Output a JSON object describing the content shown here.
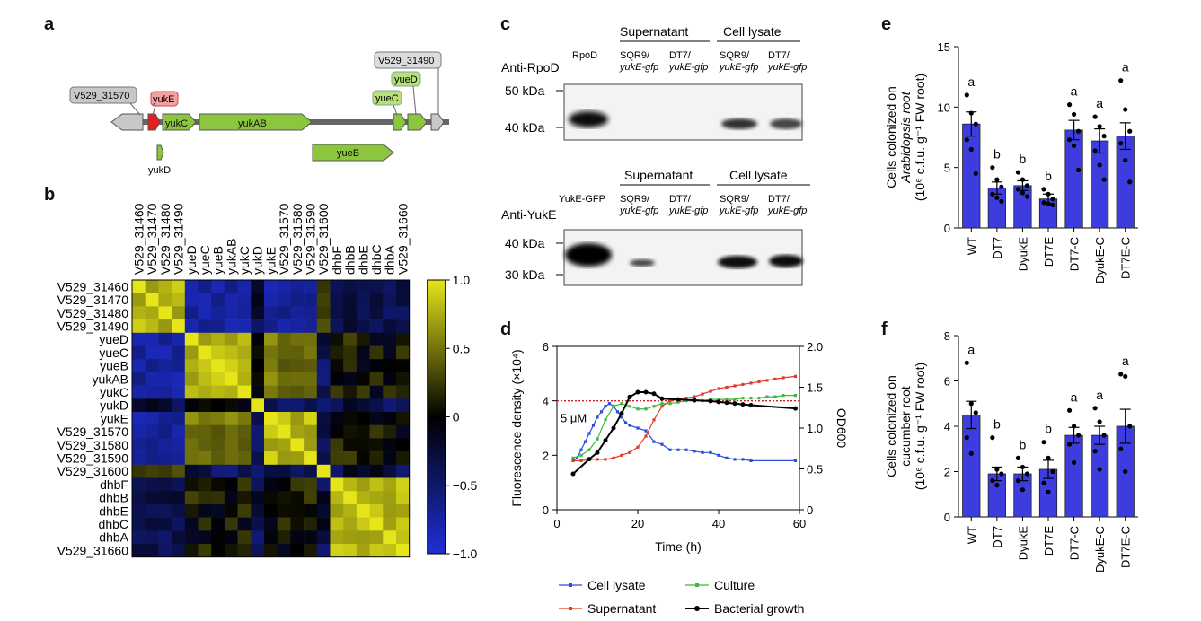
{
  "panel_labels": {
    "a": "a",
    "b": "b",
    "c": "c",
    "d": "d",
    "e": "e",
    "f": "f"
  },
  "gene_map": {
    "genes": [
      {
        "label": "V529_31570",
        "color": "#c8c8c8",
        "dir": "left"
      },
      {
        "label": "yukE",
        "color": "#e02020",
        "dir": "right"
      },
      {
        "label": "yukC",
        "color": "#8cc63f",
        "dir": "right"
      },
      {
        "label": "yukAB",
        "color": "#8cc63f",
        "dir": "right"
      },
      {
        "label": "yueC",
        "color": "#8cc63f",
        "dir": "right"
      },
      {
        "label": "yueD",
        "color": "#8cc63f",
        "dir": "right"
      },
      {
        "label": "V529_31490",
        "color": "#c8c8c8",
        "dir": "right"
      },
      {
        "label": "yukD",
        "color": "#8cc63f",
        "dir": "right"
      },
      {
        "label": "yueB",
        "color": "#8cc63f",
        "dir": "right"
      }
    ]
  },
  "heatmap": {
    "row_labels": [
      "V529_31460",
      "V529_31470",
      "V529_31480",
      "V529_31490",
      "yueD",
      "yueC",
      "yueB",
      "yukAB",
      "yukC",
      "yukD",
      "yukE",
      "V529_31570",
      "V529_31580",
      "V529_31590",
      "V529_31600",
      "dhbF",
      "dhbB",
      "dhbE",
      "dhbC",
      "dhbA",
      "V529_31660"
    ],
    "col_labels": [
      "V529_31460",
      "V529_31470",
      "V529_31480",
      "V529_31490",
      "yueD",
      "yueC",
      "yueB",
      "yukAB",
      "yukC",
      "yukD",
      "yukE",
      "V529_31570",
      "V529_31580",
      "V529_31590",
      "V529_31600",
      "dhbF",
      "dhbB",
      "dhbE",
      "dhbC",
      "dhbA",
      "V529_31660"
    ],
    "colorbar_ticks": [
      "1.0",
      "0.5",
      "0",
      "−0.5",
      "−1.0"
    ],
    "colors": {
      "high": "#e5e519",
      "mid": "#000000",
      "low": "#1f2fd6"
    }
  },
  "western": {
    "top": {
      "antibody": "Anti-RpoD",
      "marker": "RpoD",
      "group1": "Supernatant",
      "group2": "Cell lysate",
      "lane1": "SQR9/",
      "lane1b": "yukE-gfp",
      "lane2": "DT7/",
      "lane2b": "yukE-gfp",
      "kda_hi": "50 kDa",
      "kda_lo": "40 kDa"
    },
    "bottom": {
      "antibody": "Anti-YukE",
      "marker": "YukE-GFP",
      "group1": "Supernatant",
      "group2": "Cell lysate",
      "lane1": "SQR9/",
      "lane1b": "yukE-gfp",
      "lane2": "DT7/",
      "lane2b": "yukE-gfp",
      "kda_hi": "40 kDa",
      "kda_lo": "30 kDa"
    }
  },
  "chart_data": [
    {
      "type": "line",
      "panel": "d",
      "xlabel": "Time (h)",
      "ylabel": "Fluorescence density (×10⁴)",
      "y2label": "OD600",
      "xlim": [
        0,
        60
      ],
      "ylim": [
        0,
        6
      ],
      "y2lim": [
        0,
        2.0
      ],
      "xticks": [
        "0",
        "20",
        "40",
        "60"
      ],
      "yticks": [
        "0",
        "2",
        "4",
        "6"
      ],
      "y2ticks": [
        "0",
        "0.5",
        "1.0",
        "1.5",
        "2.0"
      ],
      "annotation": "5 μM",
      "threshold": 4,
      "series": [
        {
          "name": "Cell lysate",
          "color": "#2b4fd8",
          "axis": "left",
          "x": [
            4,
            5,
            6,
            7,
            8,
            9,
            10,
            11,
            12,
            13,
            14,
            15,
            16,
            17,
            18,
            20,
            22,
            24,
            26,
            28,
            30,
            32,
            34,
            36,
            38,
            40,
            42,
            44,
            46,
            48,
            59
          ],
          "y": [
            1.8,
            1.9,
            2.2,
            2.5,
            2.8,
            3.1,
            3.4,
            3.6,
            3.8,
            3.9,
            3.8,
            3.6,
            3.4,
            3.2,
            3.1,
            3.0,
            2.9,
            2.5,
            2.4,
            2.2,
            2.2,
            2.2,
            2.15,
            2.1,
            2.1,
            2.0,
            1.9,
            1.85,
            1.85,
            1.8,
            1.8
          ]
        },
        {
          "name": "Supernatant",
          "color": "#e03a2a",
          "axis": "left",
          "x": [
            4,
            6,
            8,
            10,
            12,
            14,
            16,
            18,
            20,
            22,
            24,
            26,
            28,
            30,
            32,
            34,
            36,
            38,
            40,
            42,
            44,
            46,
            48,
            50,
            52,
            54,
            56,
            59
          ],
          "y": [
            1.8,
            1.8,
            1.85,
            1.85,
            1.85,
            1.9,
            2.0,
            2.1,
            2.3,
            2.7,
            3.3,
            3.8,
            4.0,
            4.05,
            4.1,
            4.15,
            4.25,
            4.35,
            4.45,
            4.5,
            4.55,
            4.6,
            4.65,
            4.7,
            4.75,
            4.8,
            4.85,
            4.9
          ]
        },
        {
          "name": "Culture",
          "color": "#3cb83c",
          "axis": "left",
          "x": [
            4,
            6,
            8,
            10,
            12,
            14,
            16,
            18,
            20,
            22,
            24,
            26,
            28,
            30,
            32,
            34,
            36,
            38,
            40,
            42,
            44,
            46,
            48,
            50,
            52,
            54,
            56,
            59
          ],
          "y": [
            1.9,
            2.0,
            2.2,
            2.6,
            3.3,
            3.8,
            3.9,
            3.8,
            3.7,
            3.7,
            3.8,
            3.9,
            3.9,
            3.95,
            4.0,
            4.0,
            4.0,
            4.05,
            4.05,
            4.05,
            4.05,
            4.1,
            4.1,
            4.1,
            4.15,
            4.15,
            4.2,
            4.2
          ]
        },
        {
          "name": "Bacterial growth",
          "color": "#000000",
          "axis": "right",
          "x": [
            4,
            8,
            10,
            12,
            14,
            16,
            18,
            20,
            22,
            24,
            26,
            30,
            34,
            38,
            40,
            42,
            44,
            46,
            48,
            59
          ],
          "y": [
            0.44,
            0.62,
            0.7,
            0.85,
            1.0,
            1.18,
            1.38,
            1.44,
            1.44,
            1.42,
            1.36,
            1.35,
            1.34,
            1.33,
            1.32,
            1.31,
            1.3,
            1.29,
            1.28,
            1.24
          ]
        }
      ]
    },
    {
      "type": "bar",
      "panel": "e",
      "ylabel_lines": [
        "Cells colonized on",
        "Arabidopsis root",
        "(10⁶ c.f.u. g⁻¹ FW root)"
      ],
      "ylim": [
        0,
        15
      ],
      "yticks": [
        "0",
        "5",
        "10",
        "15"
      ],
      "categories": [
        "WT",
        "DT7",
        "DyukE",
        "DT7E",
        "DT7-C",
        "DyukE-C",
        "DT7E-C"
      ],
      "values": [
        8.6,
        3.3,
        3.5,
        2.4,
        8.1,
        7.2,
        7.6
      ],
      "errors": [
        1.0,
        0.5,
        0.4,
        0.4,
        0.8,
        1.0,
        1.1
      ],
      "letters": [
        "a",
        "b",
        "b",
        "b",
        "a",
        "a",
        "a"
      ],
      "points": [
        [
          11,
          9.5,
          8.6,
          7.3,
          6.5,
          4.5
        ],
        [
          5.0,
          4.0,
          3.4,
          2.8,
          2.5,
          2.2
        ],
        [
          4.6,
          4.0,
          3.5,
          3.2,
          2.9,
          2.6
        ],
        [
          3.2,
          2.8,
          2.4,
          2.1,
          2.0,
          1.9
        ],
        [
          10.2,
          9.4,
          8.0,
          7.3,
          6.8,
          4.8
        ],
        [
          9.2,
          8.4,
          7.6,
          6.4,
          5.2,
          4.0
        ],
        [
          12.2,
          9.8,
          8.0,
          7.0,
          5.6,
          3.8
        ]
      ],
      "bar_color": "#3d3ddf"
    },
    {
      "type": "bar",
      "panel": "f",
      "ylabel_lines": [
        "Cells colonized on",
        "cucumber root",
        "(10⁶ c.f.u. g⁻¹ FW root)"
      ],
      "ylim": [
        0,
        8
      ],
      "yticks": [
        "0",
        "2",
        "4",
        "6",
        "8"
      ],
      "categories": [
        "WT",
        "DT7",
        "DyukE",
        "DT7E",
        "DT7-C",
        "DyukE-C",
        "DT7E-C"
      ],
      "values": [
        4.5,
        1.9,
        1.9,
        2.1,
        3.6,
        3.6,
        4.0
      ],
      "errors": [
        0.6,
        0.3,
        0.3,
        0.4,
        0.35,
        0.4,
        0.75
      ],
      "letters": [
        "a",
        "b",
        "b",
        "b",
        "a",
        "a",
        "a"
      ],
      "points": [
        [
          6.8,
          5.0,
          4.6,
          3.5,
          2.8
        ],
        [
          3.5,
          2.1,
          1.9,
          1.6,
          1.4
        ],
        [
          2.6,
          2.2,
          1.9,
          1.6,
          1.2
        ],
        [
          3.3,
          2.6,
          2.0,
          1.5,
          1.1
        ],
        [
          4.7,
          4.0,
          3.6,
          3.2,
          2.4
        ],
        [
          4.8,
          4.2,
          3.6,
          2.9,
          2.1
        ],
        [
          6.3,
          6.2,
          4.0,
          3.0,
          2.0
        ]
      ],
      "bar_color": "#3d3ddf"
    }
  ],
  "legend_d": [
    {
      "name": "Cell lysate",
      "color": "#2b4fd8"
    },
    {
      "name": "Culture",
      "color": "#3cb83c"
    },
    {
      "name": "Supernatant",
      "color": "#e03a2a"
    },
    {
      "name": "Bacterial growth",
      "color": "#000000"
    }
  ]
}
